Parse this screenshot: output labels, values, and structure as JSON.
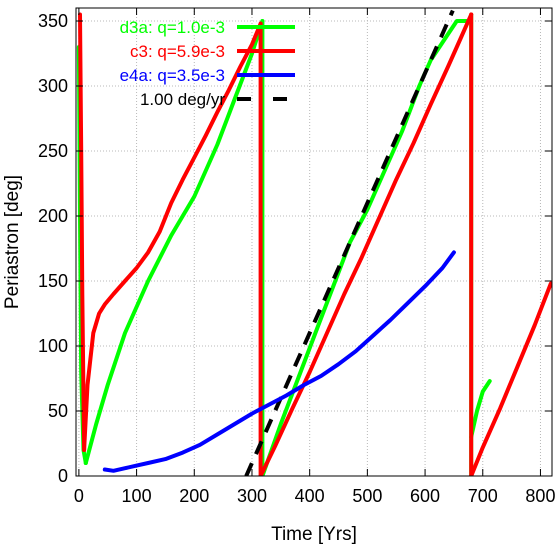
{
  "chart_data": {
    "type": "line",
    "xlabel": "Time [Yrs]",
    "ylabel": "Periastron [deg]",
    "xlim": [
      -5,
      820
    ],
    "ylim": [
      0,
      360
    ],
    "xticks": [
      0,
      100,
      200,
      300,
      400,
      500,
      600,
      700,
      800
    ],
    "yticks": [
      0,
      50,
      100,
      150,
      200,
      250,
      300,
      350
    ],
    "grid": true,
    "legend_position": "top-left",
    "series": [
      {
        "name": "d3a: q=1.0e-3",
        "color": "#00ff00",
        "segments": [
          {
            "x": [
              0,
              2,
              4,
              8,
              12
            ],
            "y": [
              330,
              200,
              80,
              20,
              10
            ]
          },
          {
            "x": [
              12,
              30,
              50,
              80,
              120,
              160,
              200,
              240,
              270,
              300,
              318
            ],
            "y": [
              10,
              40,
              70,
              110,
              150,
              185,
              215,
              255,
              290,
              325,
              350
            ]
          },
          {
            "x": [
              318,
              318
            ],
            "y": [
              350,
              0
            ]
          },
          {
            "x": [
              318,
              330,
              350,
              380,
              410,
              440,
              470,
              500,
              530,
              560,
              590,
              610,
              625,
              640,
              655,
              672
            ],
            "y": [
              0,
              15,
              40,
              75,
              110,
              145,
              180,
              205,
              235,
              265,
              300,
              320,
              330,
              340,
              350,
              350
            ]
          },
          {
            "x": [
              680,
              680
            ],
            "y": [
              355,
              0
            ]
          },
          {
            "x": [
              680,
              690,
              700,
              712
            ],
            "y": [
              30,
              50,
              65,
              73
            ]
          }
        ]
      },
      {
        "name": "c3: q=5.9e-3",
        "color": "#ff0000",
        "segments": [
          {
            "x": [
              2,
              4,
              6,
              8,
              9
            ],
            "y": [
              355,
              250,
              140,
              60,
              20
            ]
          },
          {
            "x": [
              9,
              15,
              25,
              35,
              45,
              60,
              80,
              100,
              120,
              140,
              160,
              180,
              200,
              220,
              240,
              260,
              280,
              300,
              315
            ],
            "y": [
              20,
              70,
              110,
              125,
              132,
              140,
              150,
              160,
              172,
              188,
              210,
              228,
              245,
              262,
              280,
              297,
              315,
              332,
              348
            ]
          },
          {
            "x": [
              315,
              315
            ],
            "y": [
              348,
              0
            ]
          },
          {
            "x": [
              315,
              340,
              370,
              400,
              430,
              460,
              490,
              520,
              550,
              580,
              610,
              640,
              660,
              680
            ],
            "y": [
              0,
              23,
              52,
              80,
              110,
              140,
              168,
              198,
              228,
              256,
              286,
              315,
              335,
              355
            ]
          },
          {
            "x": [
              680,
              680
            ],
            "y": [
              355,
              0
            ]
          },
          {
            "x": [
              680,
              700,
              730,
              760,
              790,
              818
            ],
            "y": [
              0,
              22,
              52,
              84,
              116,
              148
            ]
          }
        ]
      },
      {
        "name": "e4a: q=3.5e-3",
        "color": "#0000ff",
        "segments": [
          {
            "x": [
              45,
              60,
              80,
              100,
              120,
              150,
              180,
              210,
              240,
              270,
              300,
              330,
              360,
              390,
              420,
              450,
              480,
              510,
              540,
              570,
              600,
              630,
              650
            ],
            "y": [
              5,
              4,
              6,
              8,
              10,
              13,
              18,
              24,
              32,
              40,
              48,
              55,
              62,
              70,
              77,
              86,
              96,
              108,
              120,
              133,
              146,
              160,
              172
            ]
          }
        ]
      },
      {
        "name": "1.00 deg/yr",
        "color": "#000000",
        "dashed": true,
        "segments": [
          {
            "x": [
              290,
              648
            ],
            "y": [
              0,
              358
            ]
          }
        ]
      }
    ]
  }
}
